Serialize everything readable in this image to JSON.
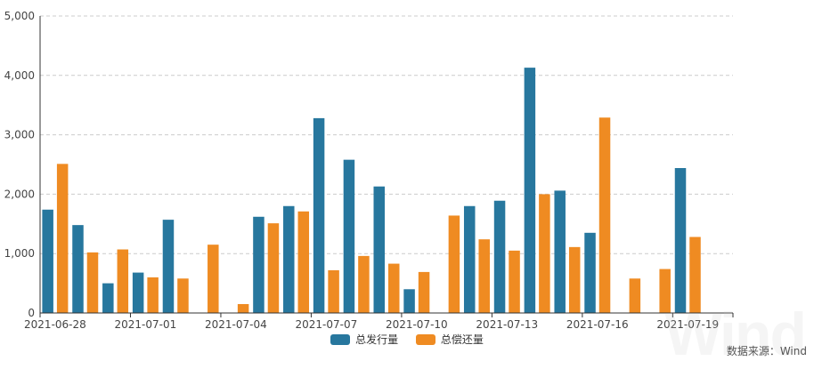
{
  "chart_data": {
    "type": "bar",
    "categories": [
      "2021-06-28",
      "2021-06-29",
      "2021-06-30",
      "2021-07-01",
      "2021-07-02",
      "2021-07-03",
      "2021-07-04",
      "2021-07-05",
      "2021-07-06",
      "2021-07-07",
      "2021-07-08",
      "2021-07-09",
      "2021-07-10",
      "2021-07-11",
      "2021-07-12",
      "2021-07-13",
      "2021-07-14",
      "2021-07-15",
      "2021-07-16",
      "2021-07-17",
      "2021-07-18",
      "2021-07-19",
      "2021-07-20"
    ],
    "x_tick_labels": [
      "2021-06-28",
      "2021-07-01",
      "2021-07-04",
      "2021-07-07",
      "2021-07-10",
      "2021-07-13",
      "2021-07-16",
      "2021-07-19"
    ],
    "y_ticks": [
      "0",
      "1,000",
      "2,000",
      "3,000",
      "4,000",
      "5,000"
    ],
    "ylim": [
      0,
      5000
    ],
    "grid": true,
    "legend_position": "bottom-center",
    "series": [
      {
        "name": "总发行量",
        "color": "#27779e",
        "values": [
          1740,
          1480,
          500,
          680,
          1570,
          0,
          0,
          1620,
          1800,
          3280,
          2580,
          2130,
          400,
          0,
          1800,
          1890,
          4130,
          2060,
          1350,
          0,
          0,
          2440,
          0
        ]
      },
      {
        "name": "总偿还量",
        "color": "#ef8b22",
        "values": [
          2510,
          1020,
          1070,
          600,
          580,
          1150,
          150,
          1510,
          1710,
          720,
          960,
          830,
          690,
          1640,
          1240,
          1050,
          2000,
          1110,
          3290,
          580,
          740,
          1280,
          0
        ]
      }
    ]
  },
  "source_text": "数据来源：Wind",
  "watermark": "Wind"
}
